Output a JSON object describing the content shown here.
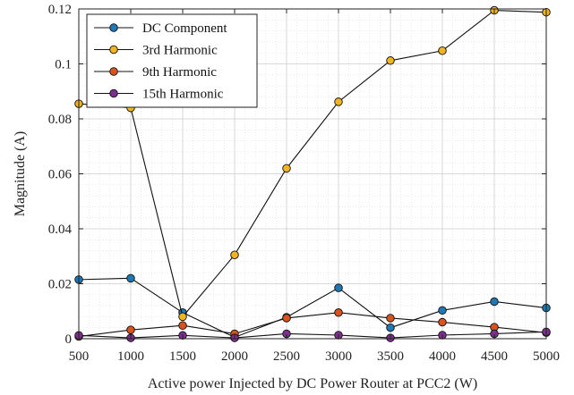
{
  "chart_data": {
    "type": "line",
    "xlabel": "Active power Injected by DC Power Router at PCC2 (W)",
    "ylabel": "Magnitude (A)",
    "x": [
      500,
      1000,
      1500,
      2000,
      2500,
      3000,
      3500,
      4000,
      4500,
      5000
    ],
    "xlim": [
      500,
      5000
    ],
    "ylim": [
      0,
      0.12
    ],
    "xticks": [
      500,
      1000,
      1500,
      2000,
      2500,
      3000,
      3500,
      4000,
      4500,
      5000
    ],
    "yticks": [
      0,
      0.02,
      0.04,
      0.06,
      0.08,
      0.1,
      0.12
    ],
    "ytick_labels": [
      "0",
      "0.02",
      "0.04",
      "0.06",
      "0.08",
      "0.1",
      "0.12"
    ],
    "grid": true,
    "legend_position": "top-left",
    "series": [
      {
        "name": "DC Component",
        "color": "#1f77b4",
        "values": [
          0.0215,
          0.022,
          0.0095,
          0.0005,
          0.0078,
          0.0185,
          0.004,
          0.0103,
          0.0135,
          0.0112
        ]
      },
      {
        "name": "3rd Harmonic",
        "color": "#f0b323",
        "values": [
          0.0855,
          0.084,
          0.008,
          0.0305,
          0.062,
          0.0862,
          0.1012,
          0.1048,
          0.1195,
          0.1188
        ]
      },
      {
        "name": "9th Harmonic",
        "color": "#d9531e",
        "values": [
          0.0008,
          0.0032,
          0.0048,
          0.0018,
          0.0075,
          0.0095,
          0.0075,
          0.006,
          0.0042,
          0.0022
        ]
      },
      {
        "name": "15th Harmonic",
        "color": "#7e2f8e",
        "values": [
          0.0012,
          0.0003,
          0.0012,
          0.0003,
          0.0018,
          0.0013,
          0.0003,
          0.0013,
          0.0018,
          0.0025
        ]
      }
    ]
  }
}
